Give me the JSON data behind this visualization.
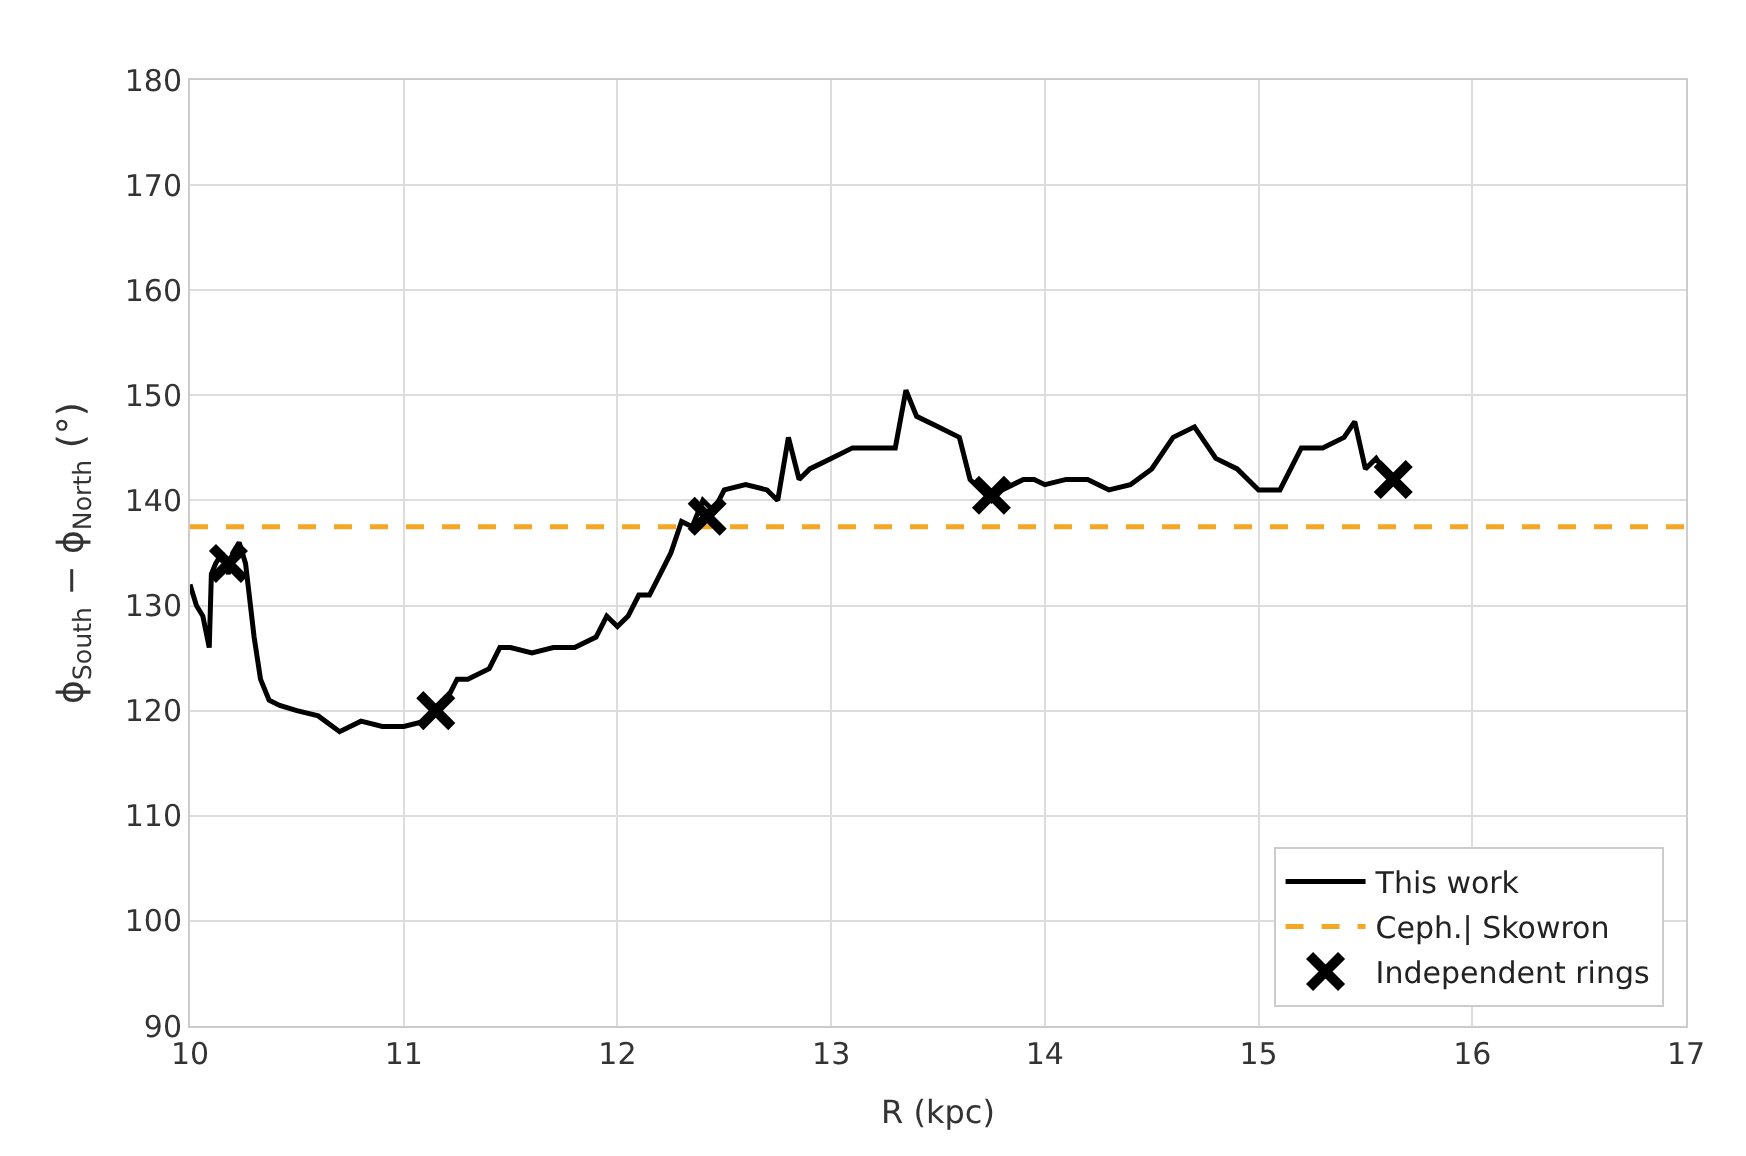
{
  "chart_data": {
    "type": "line",
    "xlabel": "R (kpc)",
    "ylabel": "ϕ$_{South}$ − ϕ$_{North}$ (°)",
    "xlim": [
      10,
      17
    ],
    "xticks": [
      10,
      11,
      12,
      13,
      14,
      15,
      16,
      17
    ],
    "ylim": [
      90,
      180
    ],
    "yticks": [
      90,
      100,
      110,
      120,
      130,
      140,
      150,
      160,
      170,
      180
    ],
    "grid": true,
    "legend": "bottom right",
    "series": [
      {
        "name": "This work",
        "color": "#000000",
        "line_style": "solid",
        "marker": "none",
        "x": [
          10.0,
          10.03,
          10.06,
          10.09,
          10.1,
          10.12,
          10.15,
          10.18,
          10.2,
          10.23,
          10.26,
          10.3,
          10.33,
          10.37,
          10.42,
          10.5,
          10.6,
          10.7,
          10.8,
          10.9,
          11.0,
          11.1,
          11.15,
          11.2,
          11.25,
          11.3,
          11.4,
          11.45,
          11.5,
          11.6,
          11.7,
          11.8,
          11.9,
          11.95,
          12.0,
          12.05,
          12.1,
          12.15,
          12.2,
          12.25,
          12.3,
          12.35,
          12.4,
          12.45,
          12.5,
          12.6,
          12.7,
          12.75,
          12.8,
          12.85,
          12.9,
          13.0,
          13.1,
          13.2,
          13.3,
          13.35,
          13.4,
          13.5,
          13.6,
          13.65,
          13.7,
          13.75,
          13.8,
          13.9,
          13.95,
          14.0,
          14.1,
          14.2,
          14.3,
          14.4,
          14.5,
          14.6,
          14.7,
          14.8,
          14.9,
          15.0,
          15.1,
          15.2,
          15.3,
          15.4,
          15.45,
          15.5,
          15.55,
          15.6
        ],
        "values": [
          132,
          130,
          129,
          126,
          133,
          134,
          135,
          133,
          135,
          136,
          134,
          127,
          123,
          121,
          120.5,
          120,
          119.5,
          118,
          119,
          118.5,
          118.5,
          119,
          120,
          121,
          123,
          123,
          124,
          126,
          126,
          125.5,
          126,
          126,
          127,
          129,
          128,
          129,
          131,
          131,
          133,
          135,
          138,
          137.5,
          140,
          139,
          141,
          141.5,
          141,
          140,
          146,
          142,
          143,
          144,
          145,
          145,
          145,
          150.5,
          148,
          147,
          146,
          142,
          141,
          140,
          141,
          142,
          142,
          141.5,
          142,
          142,
          141,
          141.5,
          143,
          146,
          147,
          144,
          143,
          141,
          141,
          145,
          145,
          146,
          147.5,
          143,
          144,
          142.5
        ]
      },
      {
        "name": "Independent rings",
        "type": "scatter",
        "color": "#000000",
        "marker": "cross",
        "x": [
          10.18,
          11.15,
          12.42,
          13.75,
          15.63
        ],
        "values": [
          134,
          120,
          138.5,
          140.5,
          142
        ]
      }
    ],
    "ref_lines": [
      {
        "axis": "y",
        "value": 137.5,
        "label": "Ceph.| Skowron",
        "color": "#f5a623",
        "line_style": "dashed"
      }
    ]
  }
}
